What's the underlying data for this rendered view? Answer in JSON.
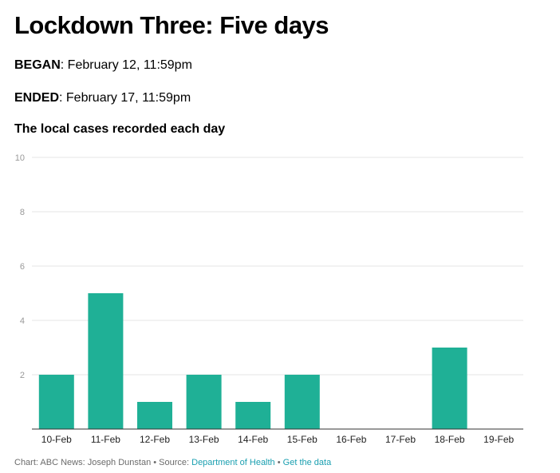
{
  "headline": "Lockdown Three: Five days",
  "began": {
    "label": "BEGAN",
    "value": ": February 12, 11:59pm"
  },
  "ended": {
    "label": "ENDED",
    "value": ": February 17, 11:59pm"
  },
  "footer": {
    "credit": "Chart: ABC News: Joseph Dunstan • Source: ",
    "source_link": "Department of Health",
    "separator": " • ",
    "data_link": "Get the data"
  },
  "colors": {
    "bar": "#1fb096",
    "grid": "#e6e6e6",
    "axis": "#333333",
    "tick_text": "#999999",
    "link": "#1a9fb0"
  },
  "chart_data": {
    "type": "bar",
    "title": "The local cases recorded each day",
    "xlabel": "",
    "ylabel": "",
    "categories": [
      "10-Feb",
      "11-Feb",
      "12-Feb",
      "13-Feb",
      "14-Feb",
      "15-Feb",
      "16-Feb",
      "17-Feb",
      "18-Feb",
      "19-Feb"
    ],
    "values": [
      2,
      5,
      1,
      2,
      1,
      2,
      0,
      0,
      3,
      0
    ],
    "ylim": [
      0,
      10
    ],
    "yticks": [
      2,
      4,
      6,
      8,
      10
    ],
    "grid": true
  }
}
